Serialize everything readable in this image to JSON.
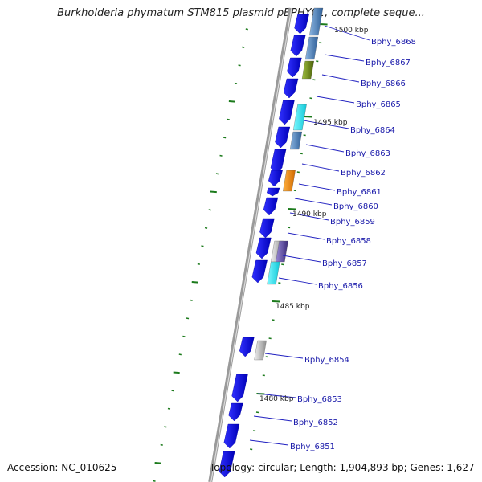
{
  "title": "Burkholderia phymatum STM815 plasmid pBPHY01, complete seque...",
  "footer": {
    "accession": "Accession: NC_010625",
    "topology": "Topology: circular; Length: 1,904,893 bp; Genes: 1,627"
  },
  "colors": {
    "cds": "#1010e0",
    "axis": "#8a8a8a",
    "tick": "#1b7a1b",
    "label": "#1a1aaa",
    "cyan": "#18e8f0",
    "steel": "#4a7fb8",
    "orange": "#f08a10",
    "gray": "#c8c8c8",
    "purple": "#6a5aa8",
    "olive": "#6e8a18"
  },
  "scale_labels": [
    "1500 kbp",
    "1495 kbp",
    "1490 kbp",
    "1485 kbp",
    "1480 kbp"
  ],
  "genes": [
    "Bphy_6868",
    "Bphy_6867",
    "Bphy_6866",
    "Bphy_6865",
    "Bphy_6864",
    "Bphy_6863",
    "Bphy_6862",
    "Bphy_6861",
    "Bphy_6860",
    "Bphy_6859",
    "Bphy_6858",
    "Bphy_6857",
    "Bphy_6856",
    "Bphy_6854",
    "Bphy_6853",
    "Bphy_6852",
    "Bphy_6851"
  ]
}
